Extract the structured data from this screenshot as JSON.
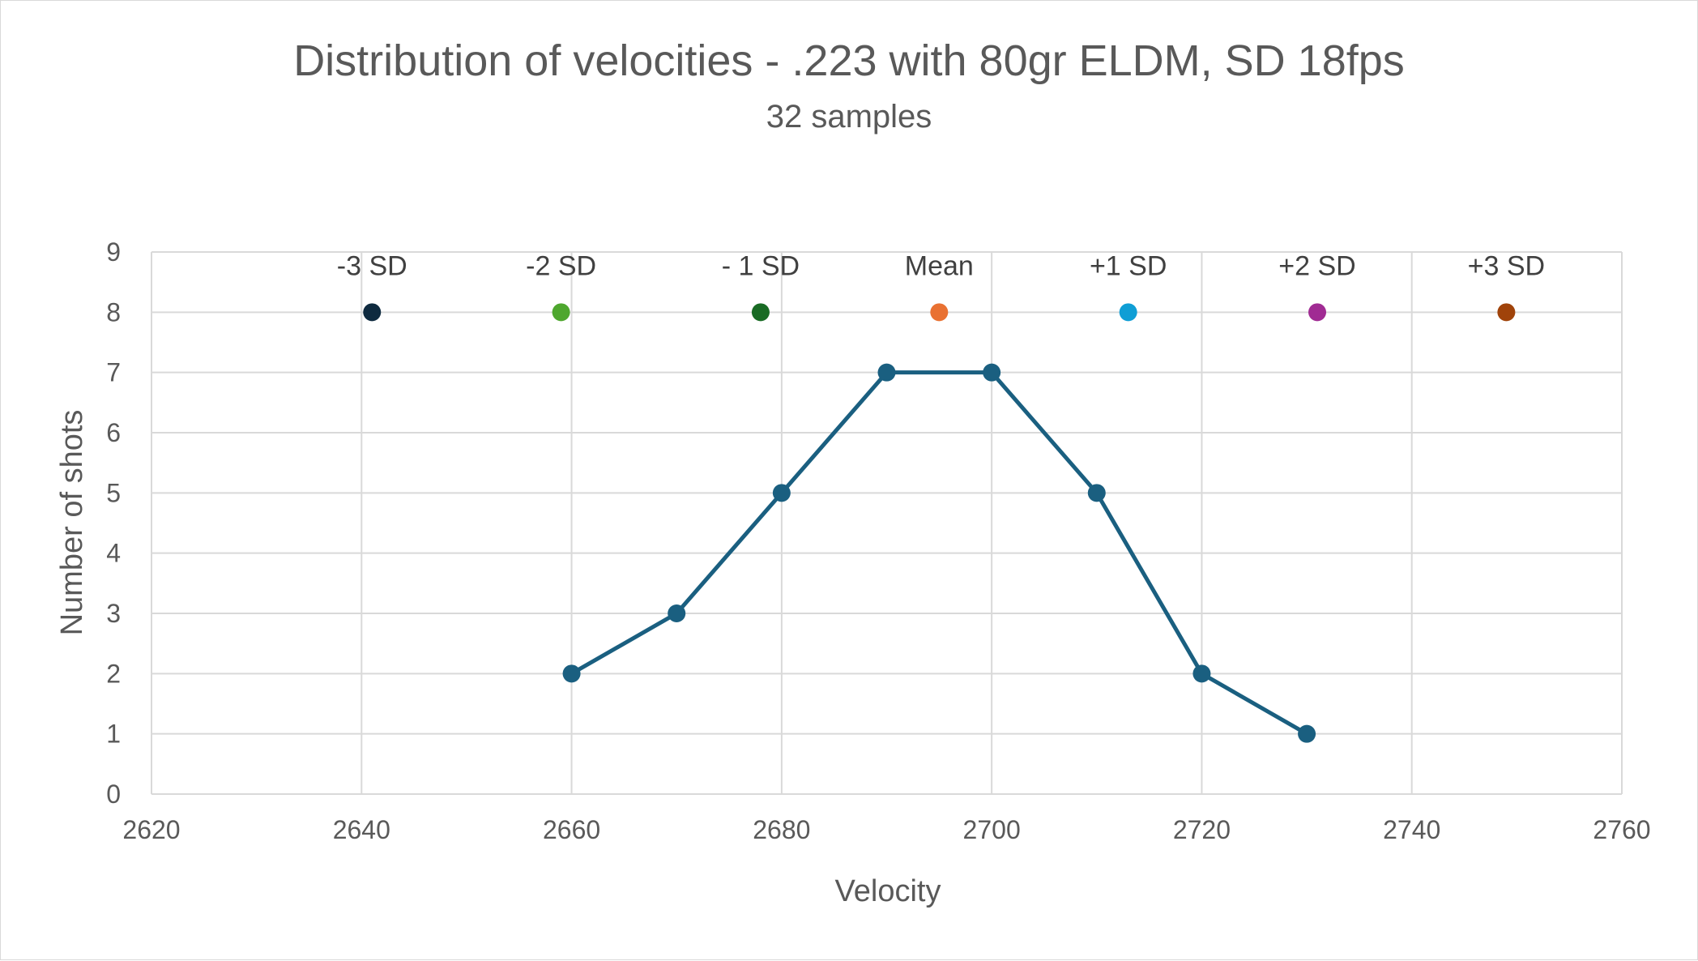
{
  "chart_data": {
    "type": "line",
    "title": "Distribution of velocities - .223 with 80gr ELDM, SD 18fps",
    "subtitle": "32 samples",
    "xlabel": "Velocity",
    "ylabel": "Number of shots",
    "xlim": [
      2620,
      2760
    ],
    "ylim": [
      0,
      9
    ],
    "x_ticks": [
      "2620",
      "2640",
      "2660",
      "2680",
      "2700",
      "2720",
      "2740",
      "2760"
    ],
    "y_ticks": [
      "0",
      "1",
      "2",
      "3",
      "4",
      "5",
      "6",
      "7",
      "8",
      "9"
    ],
    "grid": true,
    "legend": "none",
    "series": [
      {
        "x": [
          2660,
          2670,
          2680,
          2690,
          2700,
          2710,
          2720,
          2730
        ],
        "values": [
          2,
          3,
          5,
          7,
          7,
          5,
          2,
          1
        ],
        "color": "#1a5f80"
      }
    ],
    "markers": [
      {
        "label": "-3 SD",
        "x": 2641,
        "y": 8,
        "color": "#0e2a3f"
      },
      {
        "label": "-2 SD",
        "x": 2659,
        "y": 8,
        "color": "#4ea72e"
      },
      {
        "label": "- 1 SD",
        "x": 2678,
        "y": 8,
        "color": "#196b24"
      },
      {
        "label": "Mean",
        "x": 2695,
        "y": 8,
        "color": "#e97132"
      },
      {
        "label": "+1 SD",
        "x": 2713,
        "y": 8,
        "color": "#0f9ed5"
      },
      {
        "label": "+2 SD",
        "x": 2731,
        "y": 8,
        "color": "#a02b93"
      },
      {
        "label": "+3 SD",
        "x": 2749,
        "y": 8,
        "color": "#a0430a"
      }
    ],
    "gridline_color": "#d9d9d9"
  }
}
